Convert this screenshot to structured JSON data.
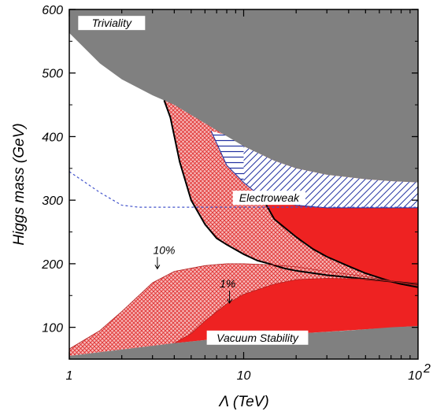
{
  "chart_data": {
    "type": "area",
    "title": "",
    "xlabel": "Λ (TeV)",
    "ylabel": "Higgs mass (GeV)",
    "x_scale": "log",
    "xlim": [
      1,
      100
    ],
    "ylim": [
      50,
      600
    ],
    "x_ticks": [
      {
        "value": 1,
        "label": "1"
      },
      {
        "value": 10,
        "label": "10"
      },
      {
        "value": 100,
        "label": "10",
        "exponent": "2"
      }
    ],
    "y_ticks": [
      100,
      200,
      300,
      400,
      500,
      600
    ],
    "grid": false,
    "annotations": [
      {
        "text": "Triviality",
        "x": 1.75,
        "y": 575
      },
      {
        "text": "Electroweak",
        "x": 14,
        "y": 300
      },
      {
        "text": "Vacuum Stability",
        "x": 12,
        "y": 80
      },
      {
        "text": "10%",
        "x": 3.5,
        "y": 218,
        "arrow_to": [
          3.2,
          192
        ]
      },
      {
        "text": "1%",
        "x": 8.1,
        "y": 165,
        "arrow_to": [
          8.3,
          138
        ]
      }
    ],
    "colors": {
      "gray_region": "#808080",
      "red_solid": "#ee2222",
      "red_hatch": "#e03030",
      "blue_hatch": "#2030a0",
      "dashed_line": "#4455cc"
    },
    "series": [
      {
        "name": "Triviality",
        "kind": "upper_gray_region",
        "x": [
          1,
          1.5,
          2,
          3,
          4,
          5,
          7,
          10,
          15,
          20,
          30,
          50,
          70,
          100
        ],
        "y": [
          563,
          515,
          490,
          465,
          450,
          434,
          410,
          385,
          362,
          350,
          340,
          333,
          330,
          328
        ]
      },
      {
        "name": "Vacuum Stability",
        "kind": "lower_gray_region",
        "x": [
          1,
          2,
          4,
          6,
          10,
          20,
          40,
          70,
          100
        ],
        "y": [
          55,
          65,
          75,
          80,
          85,
          90,
          95,
          100,
          102
        ]
      },
      {
        "name": "Electroweak",
        "kind": "blue_hatched_region",
        "upper": {
          "x": [
            6.5,
            8,
            10,
            15,
            20,
            30,
            50,
            70,
            100
          ],
          "y": [
            409,
            402,
            385,
            362,
            350,
            340,
            333,
            330,
            328
          ]
        },
        "lower": {
          "x": [
            6.5,
            8,
            10,
            12,
            15,
            20,
            30,
            50,
            100
          ],
          "y": [
            409,
            355,
            328,
            310,
            300,
            292,
            288,
            288,
            288
          ]
        }
      },
      {
        "name": "",
        "kind": "red_hatched_upper_region",
        "left_edge": {
          "x": [
            3.5,
            3.8,
            4.3,
            5,
            6,
            7,
            8,
            9,
            10,
            12,
            14,
            17,
            20,
            30,
            50,
            70,
            100
          ],
          "y": [
            457,
            430,
            360,
            300,
            262,
            240,
            230,
            222,
            215,
            205,
            200,
            193,
            189,
            182,
            176,
            172,
            168
          ]
        }
      },
      {
        "name": "",
        "kind": "red_solid_upper_region",
        "left_edge": {
          "x": [
            12.5,
            13.5,
            15,
            20,
            25,
            30,
            40,
            50,
            60,
            70,
            80,
            100
          ],
          "y": [
            314,
            292,
            270,
            242,
            223,
            211,
            196,
            185,
            178,
            172,
            168,
            163
          ]
        }
      },
      {
        "name": "10%",
        "kind": "red_hatched_lower_band",
        "x": [
          1,
          1.5,
          2,
          3,
          4,
          6,
          8,
          10,
          15,
          20,
          30,
          50,
          100
        ],
        "y": [
          66,
          95,
          125,
          170,
          188,
          197,
          200,
          200,
          198,
          195,
          188,
          180,
          165
        ]
      },
      {
        "name": "1%",
        "kind": "red_solid_lower_band",
        "x": [
          4,
          5,
          6,
          8,
          10,
          15,
          20,
          30,
          50,
          100
        ],
        "y": [
          75,
          90,
          110,
          137,
          152,
          168,
          175,
          177,
          176,
          168
        ]
      },
      {
        "name": "",
        "kind": "dashed_line",
        "x": [
          1,
          1.5,
          2,
          2.5,
          3,
          5,
          10,
          100
        ],
        "y": [
          345,
          312,
          292,
          289,
          289,
          289,
          289,
          289
        ]
      }
    ]
  }
}
